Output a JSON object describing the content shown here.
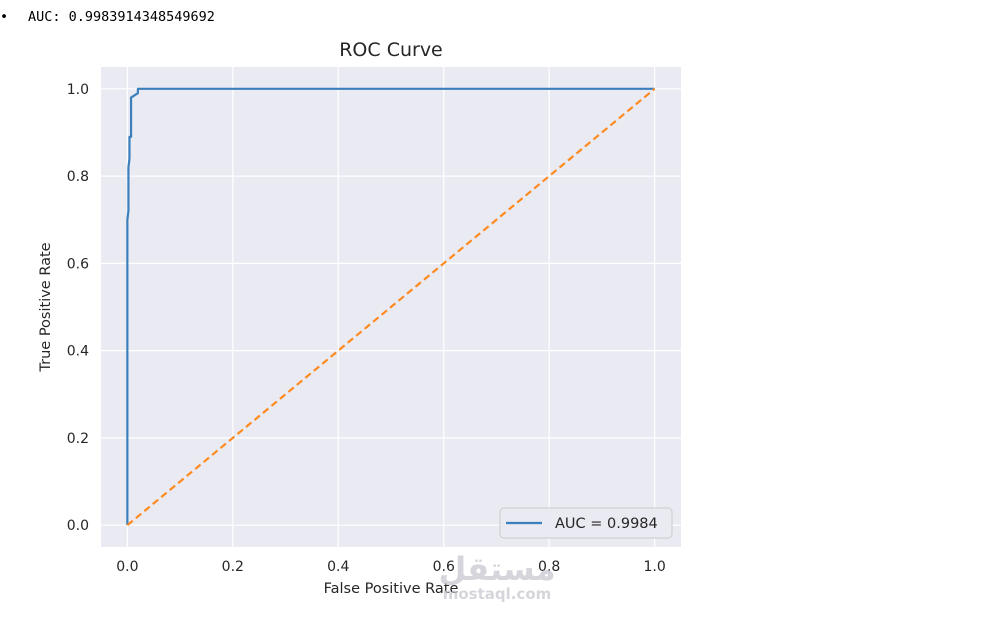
{
  "output": {
    "bullet": "•",
    "text": "AUC: 0.9983914348549692"
  },
  "watermark": {
    "arabic": "مستقل",
    "latin": "mostaql.com"
  },
  "colors": {
    "plot_bg": "#eaeaf2",
    "grid": "#ffffff",
    "roc_line": "#3b7fbd",
    "diagonal": "#ff8a1f"
  },
  "chart_data": {
    "type": "line",
    "title": "ROC Curve",
    "xlabel": "False Positive Rate",
    "ylabel": "True Positive Rate",
    "xlim": [
      -0.05,
      1.05
    ],
    "ylim": [
      -0.05,
      1.05
    ],
    "xticks": [
      0.0,
      0.2,
      0.4,
      0.6,
      0.8,
      1.0
    ],
    "xtick_labels": [
      "0.0",
      "0.2",
      "0.4",
      "0.6",
      "0.8",
      "1.0"
    ],
    "yticks": [
      0.0,
      0.2,
      0.4,
      0.6,
      0.8,
      1.0
    ],
    "ytick_labels": [
      "0.0",
      "0.2",
      "0.4",
      "0.6",
      "0.8",
      "1.0"
    ],
    "grid": true,
    "legend_position": "lower-right",
    "series": [
      {
        "name": "AUC = 0.9984",
        "style": "solid",
        "x": [
          0.0,
          0.0,
          0.002,
          0.002,
          0.004,
          0.004,
          0.007,
          0.007,
          0.02,
          0.02,
          0.03,
          0.05,
          0.05,
          1.0
        ],
        "y": [
          0.0,
          0.7,
          0.72,
          0.82,
          0.84,
          0.89,
          0.89,
          0.98,
          0.99,
          1.0,
          1.0,
          1.0,
          1.0,
          1.0
        ]
      },
      {
        "style": "dashed",
        "x": [
          0.0,
          1.0
        ],
        "y": [
          0.0,
          1.0
        ]
      }
    ]
  }
}
